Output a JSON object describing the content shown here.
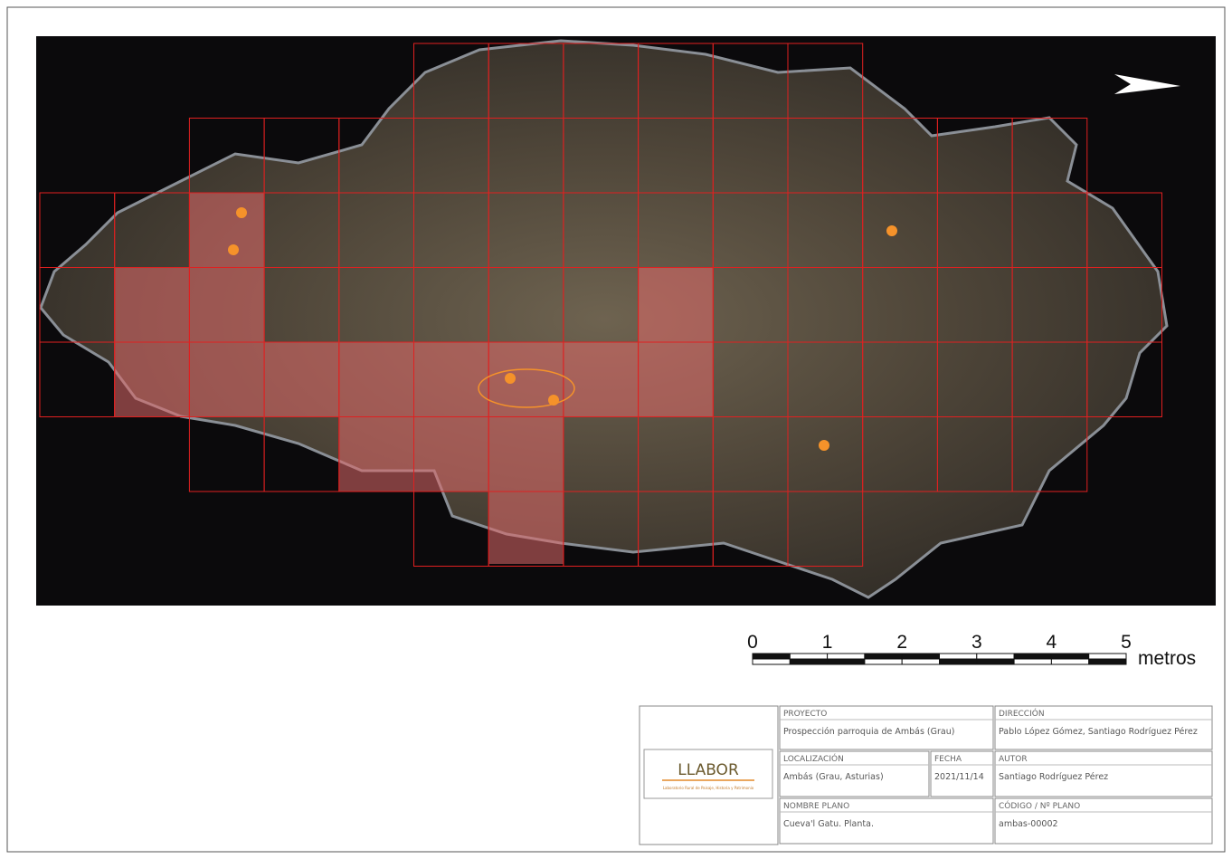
{
  "scale_bar": {
    "labels": [
      "0",
      "1",
      "2",
      "3",
      "4",
      "5"
    ],
    "unit": "metros"
  },
  "logo": {
    "name": "LLABOR",
    "subtitle": "Laboratorio Rural de Paisaje, Historia y Patrimonio"
  },
  "title_block": {
    "project": {
      "label": "PROYECTO",
      "value": "Prospección parroquia de Ambás (Grau)"
    },
    "direction": {
      "label": "DIRECCIÓN",
      "value": "Pablo López Gómez, Santiago Rodríguez Pérez"
    },
    "location": {
      "label": "LOCALIZACIÓN",
      "value": "Ambás (Grau, Asturias)"
    },
    "date": {
      "label": "FECHA",
      "value": "2021/11/14"
    },
    "author": {
      "label": "AUTOR",
      "value": "Santiago Rodríguez Pérez"
    },
    "plan_name": {
      "label": "NOMBRE PLANO",
      "value": "Cueva'l Gatu. Planta."
    },
    "code": {
      "label": "CÓDIGO / Nº PLANO",
      "value": "ambas-00002"
    }
  }
}
